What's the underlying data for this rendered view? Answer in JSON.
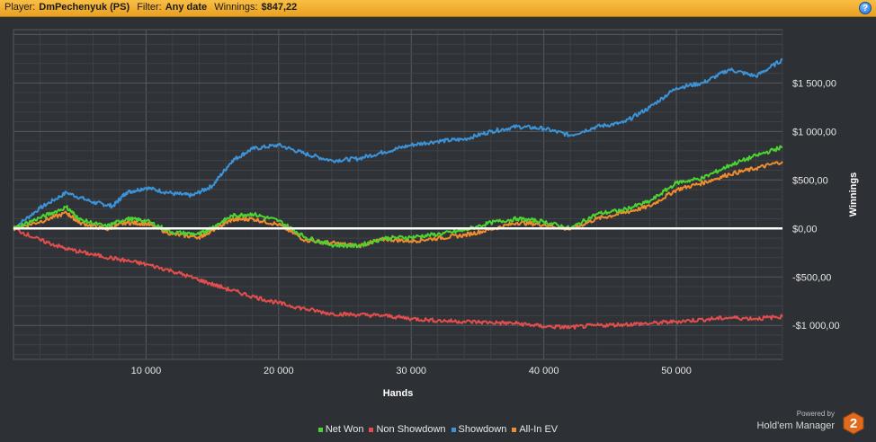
{
  "header": {
    "player_label": "Player:",
    "player_value": "DmPechenyuk (PS)",
    "filter_label": "Filter:",
    "filter_value": "Any date",
    "winnings_label": "Winnings:",
    "winnings_value": "$847,22",
    "help_glyph": "?"
  },
  "chart_data": {
    "type": "line",
    "xlabel": "Hands",
    "ylabel": "Winnings",
    "xlim": [
      0,
      58000
    ],
    "ylim": [
      -1350,
      2050
    ],
    "x_ticks": [
      10000,
      20000,
      30000,
      40000,
      50000
    ],
    "x_tick_labels": [
      "10 000",
      "20 000",
      "30 000",
      "40 000",
      "50 000"
    ],
    "y_ticks": [
      1500,
      1000,
      500,
      0,
      -500,
      -1000
    ],
    "y_tick_labels": [
      "$1 500,00",
      "$1 000,00",
      "$500,00",
      "$0,00",
      "-$500,00",
      "-$1 000,00"
    ],
    "grid": true,
    "legend_position": "bottom",
    "series": [
      {
        "name": "Showdown",
        "color": "#3d93d8",
        "x": [
          0,
          2000,
          4000,
          6000,
          7500,
          8500,
          10000,
          12000,
          13500,
          15000,
          16500,
          18000,
          20000,
          22000,
          24000,
          26000,
          28000,
          30000,
          32000,
          34000,
          36000,
          38000,
          40000,
          42000,
          44000,
          46000,
          48000,
          50000,
          52000,
          54000,
          56000,
          58000
        ],
        "y": [
          0,
          210,
          370,
          270,
          230,
          370,
          420,
          360,
          340,
          440,
          700,
          820,
          860,
          770,
          700,
          720,
          790,
          860,
          900,
          920,
          1000,
          1050,
          1030,
          960,
          1050,
          1090,
          1250,
          1450,
          1500,
          1640,
          1570,
          1740
        ]
      },
      {
        "name": "All-In EV",
        "color": "#f08c2e",
        "x": [
          0,
          2000,
          4000,
          5000,
          7000,
          8500,
          10000,
          12000,
          14000,
          15000,
          16500,
          18000,
          20000,
          22000,
          24000,
          26000,
          28000,
          30000,
          32000,
          34000,
          36000,
          38000,
          40000,
          42000,
          44000,
          46000,
          48000,
          50000,
          52000,
          54000,
          56000,
          58000
        ],
        "y": [
          0,
          70,
          160,
          60,
          -10,
          60,
          50,
          -60,
          -90,
          -20,
          90,
          100,
          40,
          -120,
          -150,
          -180,
          -110,
          -130,
          -100,
          -70,
          -10,
          60,
          40,
          -10,
          100,
          160,
          230,
          400,
          470,
          560,
          620,
          690
        ]
      },
      {
        "name": "Net Won",
        "color": "#4cd532",
        "x": [
          0,
          2000,
          4000,
          5000,
          7000,
          8500,
          10000,
          12000,
          14000,
          15000,
          16500,
          18000,
          20000,
          22000,
          24000,
          26000,
          28000,
          30000,
          32000,
          34000,
          36000,
          38000,
          40000,
          42000,
          44000,
          46000,
          48000,
          50000,
          52000,
          54000,
          56000,
          58000
        ],
        "y": [
          0,
          110,
          220,
          90,
          20,
          100,
          80,
          -40,
          -60,
          10,
          130,
          150,
          80,
          -90,
          -170,
          -180,
          -100,
          -90,
          -60,
          -20,
          60,
          100,
          70,
          0,
          150,
          190,
          280,
          470,
          520,
          650,
          750,
          840
        ]
      },
      {
        "name": "Non Showdown",
        "color": "#e24d4d",
        "x": [
          0,
          2000,
          4000,
          6000,
          8000,
          10000,
          12000,
          14000,
          16000,
          18000,
          20000,
          22000,
          24000,
          26000,
          28000,
          30000,
          32000,
          34000,
          36000,
          38000,
          40000,
          42000,
          44000,
          46000,
          48000,
          50000,
          52000,
          54000,
          56000,
          58000
        ],
        "y": [
          0,
          -120,
          -210,
          -270,
          -320,
          -370,
          -440,
          -530,
          -620,
          -700,
          -770,
          -830,
          -880,
          -890,
          -900,
          -930,
          -950,
          -960,
          -970,
          -980,
          -1010,
          -1020,
          -1000,
          -990,
          -980,
          -960,
          -940,
          -920,
          -930,
          -910
        ]
      }
    ],
    "zero_line": 0
  },
  "legend_order": [
    "Net Won",
    "Non Showdown",
    "Showdown",
    "All-In EV"
  ],
  "brand": {
    "powered_by": "Powered by",
    "name": "Hold'em Manager",
    "logo_text": "2"
  }
}
